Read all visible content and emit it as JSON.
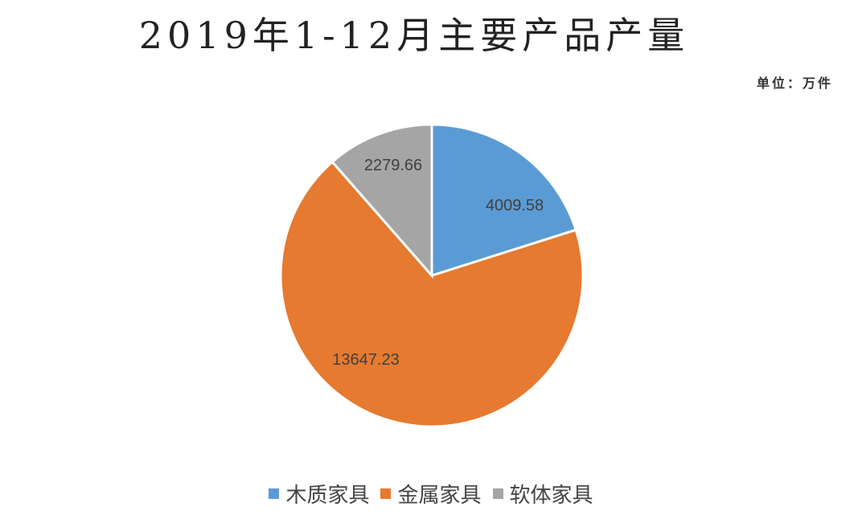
{
  "chart_data": {
    "type": "pie",
    "title": "2019年1-12月主要产品产量",
    "unit_note": "单位：万件",
    "categories": [
      "木质家具",
      "金属家具",
      "软体家具"
    ],
    "values": [
      4009.58,
      13647.23,
      2279.66
    ],
    "data_labels": [
      "4009.58",
      "13647.23",
      "2279.66"
    ],
    "colors": [
      "#5b9bd5",
      "#e57a30",
      "#a5a5a5"
    ],
    "start_angle": "12 o'clock, clockwise",
    "legend_position": "bottom"
  }
}
